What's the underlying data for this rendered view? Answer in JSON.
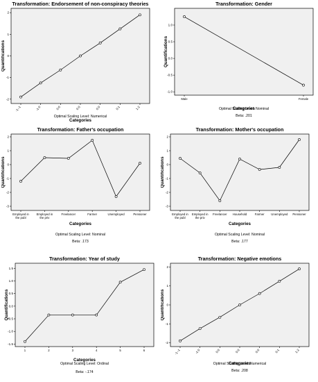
{
  "chart_data": [
    {
      "type": "line",
      "title": "Transformation: Endorsement of non-conspiracy theories",
      "xlabel": "Categories",
      "ylabel": "Quantifications",
      "categories": [
        "-1--1",
        "-1-0",
        "0-0",
        "0-0",
        "0-0",
        "0-1",
        "1-2"
      ],
      "values": [
        -1.9,
        -1.25,
        -0.65,
        0.0,
        0.6,
        1.25,
        1.9
      ],
      "ylim": [
        -2.2,
        2.2
      ],
      "yticks": [
        -2,
        -1,
        0,
        1,
        2
      ],
      "notes": [
        "Optimal Scaling Level: Numerical"
      ]
    },
    {
      "type": "line",
      "title": "Transformation: Gender",
      "xlabel": "Categories",
      "ylabel": "Quantifications",
      "categories": [
        "Male",
        "Female"
      ],
      "values": [
        1.25,
        -0.8
      ],
      "ylim": [
        -1.1,
        1.5
      ],
      "yticks": [
        -1.0,
        -0.5,
        0.0,
        0.5,
        1.0
      ],
      "notes": [
        "Optimal Scaling Level: Nominal",
        "Beta: .201"
      ]
    },
    {
      "type": "line",
      "title": "Transformation: Father's occupation",
      "xlabel": "Categories",
      "ylabel": "Quantifications",
      "categories": [
        "Employed in the publ",
        "Employed in the priv",
        "Freelancer",
        "Farmer",
        "Unemployed",
        "Pensioner"
      ],
      "values": [
        -1.2,
        0.5,
        0.45,
        1.75,
        -2.3,
        0.1
      ],
      "ylim": [
        -3.3,
        2.2
      ],
      "yticks": [
        -3,
        -2,
        -1,
        0,
        1,
        2
      ],
      "notes": [
        "Optimal Scaling Level: Nominal",
        "Beta: .173"
      ]
    },
    {
      "type": "line",
      "title": "Transformation: Mother's occupation",
      "xlabel": "Categories",
      "ylabel": "Quantifications",
      "categories": [
        "Employed in the publ",
        "Employed in the priv",
        "Freelancer",
        "Household",
        "Farmer",
        "Unemployed",
        "Pensioner"
      ],
      "values": [
        0.45,
        -0.6,
        -2.6,
        0.4,
        -0.35,
        -0.2,
        1.8
      ],
      "ylim": [
        -3.3,
        2.2
      ],
      "yticks": [
        -3,
        -2,
        -1,
        0,
        1,
        2
      ],
      "notes": [
        "Optimal Scaling Level: Nominal",
        "Beta: .177"
      ]
    },
    {
      "type": "line",
      "title": "Transformation: Year of study",
      "xlabel": "Categories",
      "ylabel": "Quantifications",
      "categories": [
        "1",
        "2",
        "3",
        "4",
        "5",
        "6"
      ],
      "values": [
        -1.4,
        -0.35,
        -0.35,
        -0.35,
        0.95,
        1.45
      ],
      "ylim": [
        -1.6,
        1.7
      ],
      "yticks": [
        -1.5,
        -1.0,
        -0.5,
        0.0,
        0.5,
        1.0,
        1.5
      ],
      "notes": [
        "Optimal Scaling Level: Ordinal",
        "Beta: -.174"
      ]
    },
    {
      "type": "line",
      "title": "Transformation: Negative emotions",
      "xlabel": "Categories",
      "ylabel": "Quantifications",
      "categories": [
        "-1--1",
        "-1-0",
        "0-0",
        "0-0",
        "0-0",
        "0-1",
        "1-2"
      ],
      "values": [
        -1.9,
        -1.25,
        -0.65,
        0.0,
        0.6,
        1.25,
        1.9
      ],
      "ylim": [
        -2.2,
        2.2
      ],
      "yticks": [
        -2,
        -1,
        0,
        1,
        2
      ],
      "notes": [
        "Optimal Scaling Level: Numerical",
        "Beta: .208"
      ]
    }
  ]
}
